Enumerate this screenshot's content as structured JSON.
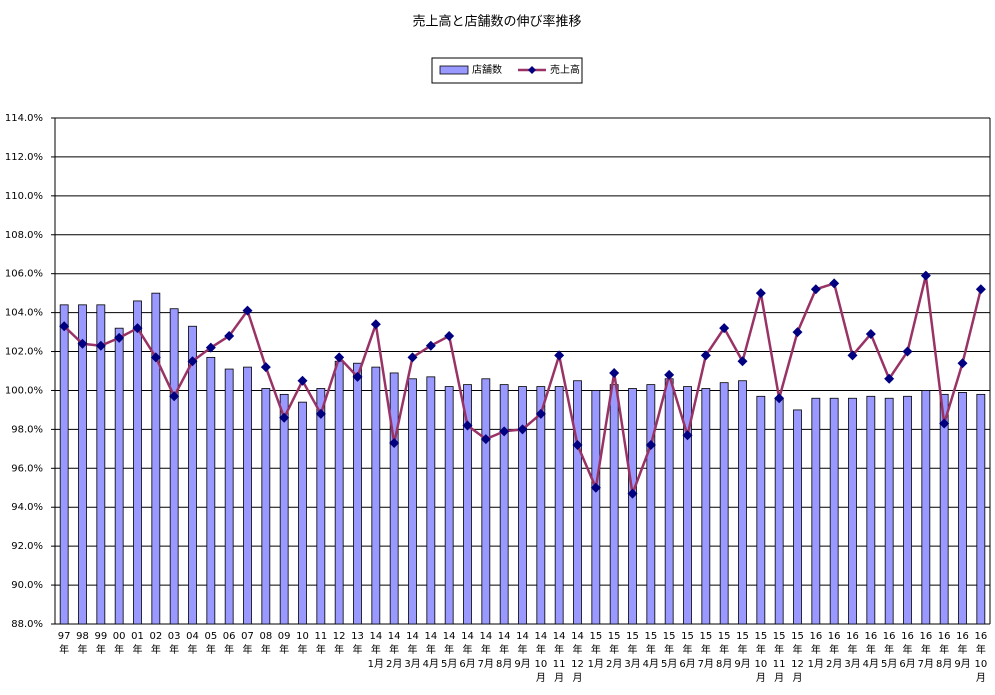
{
  "chart_data": {
    "type": "bar-line",
    "title": "売上高と店舗数の伸び率推移",
    "categories": [
      [
        "97",
        "年"
      ],
      [
        "98",
        "年"
      ],
      [
        "99",
        "年"
      ],
      [
        "00",
        "年"
      ],
      [
        "01",
        "年"
      ],
      [
        "02",
        "年"
      ],
      [
        "03",
        "年"
      ],
      [
        "04",
        "年"
      ],
      [
        "05",
        "年"
      ],
      [
        "06",
        "年"
      ],
      [
        "07",
        "年"
      ],
      [
        "08",
        "年"
      ],
      [
        "09",
        "年"
      ],
      [
        "10",
        "年"
      ],
      [
        "11",
        "年"
      ],
      [
        "12",
        "年"
      ],
      [
        "13",
        "年"
      ],
      [
        "14",
        "年",
        "1月"
      ],
      [
        "14",
        "年",
        "2月"
      ],
      [
        "14",
        "年",
        "3月"
      ],
      [
        "14",
        "年",
        "4月"
      ],
      [
        "14",
        "年",
        "5月"
      ],
      [
        "14",
        "年",
        "6月"
      ],
      [
        "14",
        "年",
        "7月"
      ],
      [
        "14",
        "年",
        "8月"
      ],
      [
        "14",
        "年",
        "9月"
      ],
      [
        "14",
        "年",
        "10",
        "月"
      ],
      [
        "14",
        "年",
        "11",
        "月"
      ],
      [
        "14",
        "年",
        "12",
        "月"
      ],
      [
        "15",
        "年",
        "1月"
      ],
      [
        "15",
        "年",
        "2月"
      ],
      [
        "15",
        "年",
        "3月"
      ],
      [
        "15",
        "年",
        "4月"
      ],
      [
        "15",
        "年",
        "5月"
      ],
      [
        "15",
        "年",
        "6月"
      ],
      [
        "15",
        "年",
        "7月"
      ],
      [
        "15",
        "年",
        "8月"
      ],
      [
        "15",
        "年",
        "9月"
      ],
      [
        "15",
        "年",
        "10",
        "月"
      ],
      [
        "15",
        "年",
        "11",
        "月"
      ],
      [
        "15",
        "年",
        "12",
        "月"
      ],
      [
        "16",
        "年",
        "1月"
      ],
      [
        "16",
        "年",
        "2月"
      ],
      [
        "16",
        "年",
        "3月"
      ],
      [
        "16",
        "年",
        "4月"
      ],
      [
        "16",
        "年",
        "5月"
      ],
      [
        "16",
        "年",
        "6月"
      ],
      [
        "16",
        "年",
        "7月"
      ],
      [
        "16",
        "年",
        "8月"
      ],
      [
        "16",
        "年",
        "9月"
      ],
      [
        "16",
        "年",
        "10",
        "月"
      ]
    ],
    "series": [
      {
        "name": "店舗数",
        "type": "bar",
        "color": "#9999ff",
        "values": [
          104.4,
          104.4,
          104.4,
          103.2,
          104.6,
          105.0,
          104.2,
          103.3,
          101.7,
          101.1,
          101.2,
          100.1,
          99.8,
          99.4,
          100.1,
          101.5,
          101.4,
          101.2,
          100.9,
          100.6,
          100.7,
          100.2,
          100.3,
          100.6,
          100.3,
          100.2,
          100.2,
          100.2,
          100.5,
          100.0,
          100.3,
          100.1,
          100.3,
          100.6,
          100.2,
          100.1,
          100.4,
          100.5,
          99.7,
          99.6,
          99.0,
          99.6,
          99.6,
          99.6,
          99.7,
          99.6,
          99.7,
          100.0,
          99.8,
          99.9,
          99.8
        ]
      },
      {
        "name": "売上高",
        "type": "line",
        "color": "#993366",
        "marker_color": "#000080",
        "values": [
          103.3,
          102.4,
          102.3,
          102.7,
          103.2,
          101.7,
          99.7,
          101.5,
          102.2,
          102.8,
          104.1,
          101.2,
          98.6,
          100.5,
          98.8,
          101.7,
          100.7,
          103.4,
          97.3,
          101.7,
          102.3,
          102.8,
          98.2,
          97.5,
          97.9,
          98.0,
          98.8,
          101.8,
          97.2,
          95.0,
          100.9,
          94.7,
          97.2,
          100.8,
          97.7,
          101.8,
          103.2,
          101.5,
          105.0,
          99.6,
          103.0,
          105.2,
          105.5,
          101.8,
          102.9,
          100.6,
          102.0,
          105.9,
          98.3,
          101.4,
          105.2
        ]
      }
    ],
    "ylim": [
      88,
      114
    ],
    "yticks": [
      {
        "value": 88,
        "label": "88.0%"
      },
      {
        "value": 90,
        "label": "90.0%"
      },
      {
        "value": 92,
        "label": "92.0%"
      },
      {
        "value": 94,
        "label": "94.0%"
      },
      {
        "value": 96,
        "label": "96.0%"
      },
      {
        "value": 98,
        "label": "98.0%"
      },
      {
        "value": 100,
        "label": "100.0%"
      },
      {
        "value": 102,
        "label": "102.0%"
      },
      {
        "value": 104,
        "label": "104.0%"
      },
      {
        "value": 106,
        "label": "106.0%"
      },
      {
        "value": 108,
        "label": "108.0%"
      },
      {
        "value": 110,
        "label": "110.0%"
      },
      {
        "value": 112,
        "label": "112.0%"
      },
      {
        "value": 114,
        "label": "114.0%"
      }
    ],
    "grid": true,
    "legend": "top"
  }
}
